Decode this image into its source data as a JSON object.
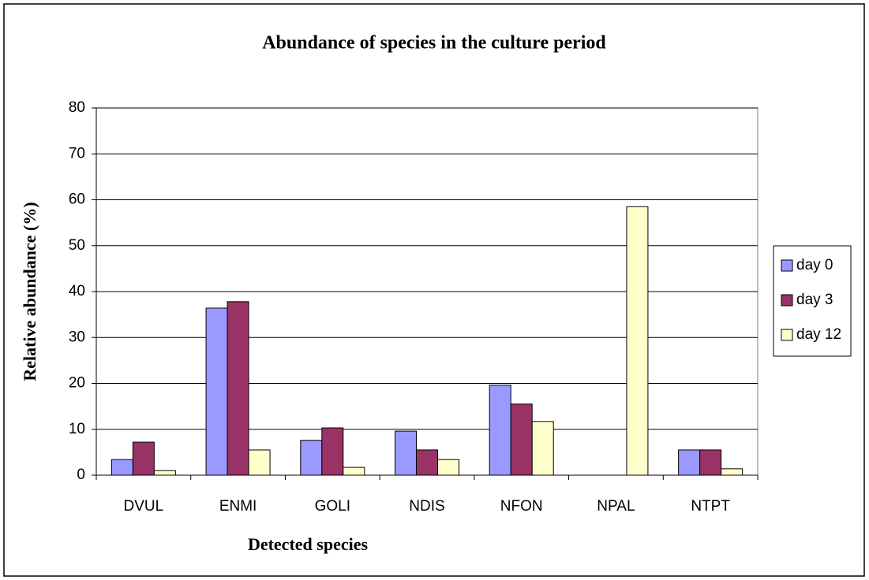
{
  "chart_data": {
    "type": "bar",
    "title": "Abundance of species in the culture period",
    "x_label": "Detected species",
    "y_label": "Relative abundance (%)",
    "categories": [
      "DVUL",
      "ENMI",
      "GOLI",
      "NDIS",
      "NFON",
      "NPAL",
      "NTPT"
    ],
    "series": [
      {
        "name": "day 0",
        "color": "#9999ff",
        "values": [
          3.4,
          36.4,
          7.6,
          9.6,
          19.6,
          0,
          5.5
        ]
      },
      {
        "name": "day 3",
        "color": "#993366",
        "values": [
          7.2,
          37.8,
          10.3,
          5.5,
          15.5,
          0,
          5.5
        ]
      },
      {
        "name": "day 12",
        "color": "#ffffcc",
        "values": [
          1.0,
          5.5,
          1.7,
          3.4,
          11.7,
          58.5,
          1.4
        ]
      }
    ],
    "ylim": [
      0,
      80
    ],
    "yticks": [
      0,
      10,
      20,
      30,
      40,
      50,
      60,
      70,
      80
    ],
    "grid": true,
    "legend": "right"
  }
}
